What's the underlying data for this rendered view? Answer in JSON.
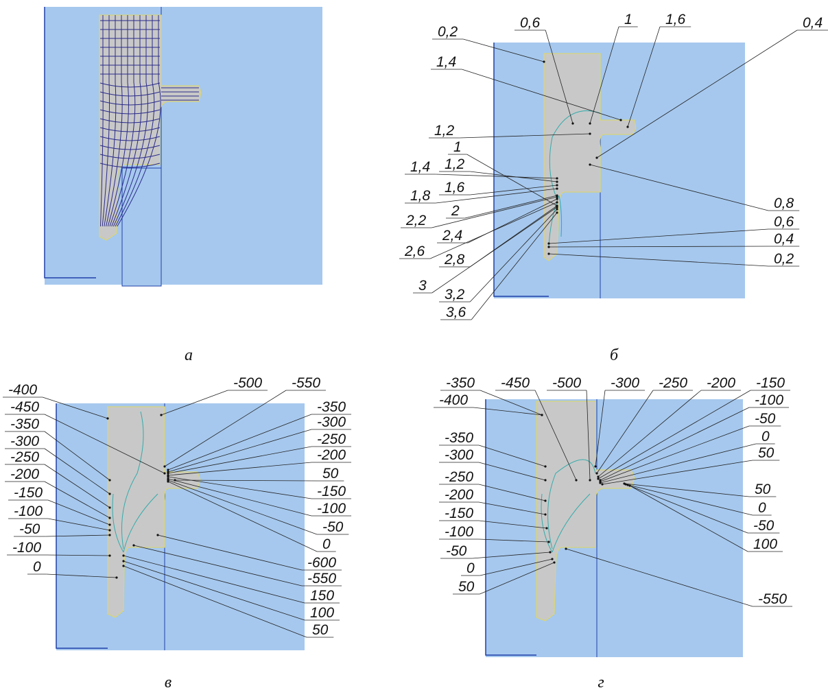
{
  "panels": [
    {
      "caption": "а"
    },
    {
      "caption": "б",
      "labels": [
        "0,2",
        "1,4",
        "0,6",
        "1",
        "1,6",
        "0,4",
        "1,2",
        "1",
        "1,4",
        "1,2",
        "1,8",
        "1,6",
        "2",
        "2,2",
        "2,4",
        "2,6",
        "2,8",
        "3",
        "3,2",
        "3,6",
        "0,8",
        "0,6",
        "0,4",
        "0,2"
      ]
    },
    {
      "caption": "в",
      "labels": [
        "-400",
        "-450",
        "-350",
        "-300",
        "-250",
        "-200",
        "-150",
        "-100",
        "-50",
        "-100",
        "0",
        "-500",
        "-550",
        "-350",
        "-300",
        "-250",
        "-200",
        "50",
        "-150",
        "-100",
        "-50",
        "0",
        "-600",
        "-550",
        "150",
        "100",
        "50"
      ]
    },
    {
      "caption": "г",
      "labels": [
        "-350",
        "-450",
        "-500",
        "-300",
        "-250",
        "-200",
        "-150",
        "-400",
        "-350",
        "-300",
        "-250",
        "-200",
        "-150",
        "-100",
        "-50",
        "0",
        "50",
        "-100",
        "-50",
        "0",
        "50",
        "50",
        "0",
        "-50",
        "100",
        "-550"
      ]
    }
  ]
}
